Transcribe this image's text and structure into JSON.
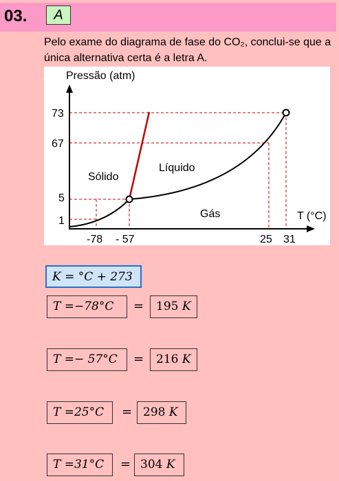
{
  "question": {
    "number": "03.",
    "answer_letter": "A"
  },
  "intro_text": "Pelo exame do diagrama de fase do CO₂, conclui-se que a única alternativa certa é a letra A.",
  "diagram": {
    "y_axis_label": "Pressão (atm)",
    "x_axis_label": "T (°C)",
    "y_ticks": [
      "73",
      "67",
      "5",
      "1"
    ],
    "x_ticks": [
      "-78",
      "- 57",
      "25",
      "31"
    ],
    "regions": {
      "solid": "Sólido",
      "liquid": "Líquido",
      "gas": "Gás"
    }
  },
  "kelvin_formula": "K = °C + 273",
  "conversions": [
    {
      "celsius": "T =−78°C",
      "kelvin_value": "195",
      "kelvin_unit": "K"
    },
    {
      "celsius": "T =− 57°C",
      "kelvin_value": "216",
      "kelvin_unit": "K"
    },
    {
      "celsius": "T =25°C",
      "kelvin_value": "298",
      "kelvin_unit": "K"
    },
    {
      "celsius": "T =31°C",
      "kelvin_value": "304",
      "kelvin_unit": "K"
    }
  ],
  "equals_sign": "="
}
